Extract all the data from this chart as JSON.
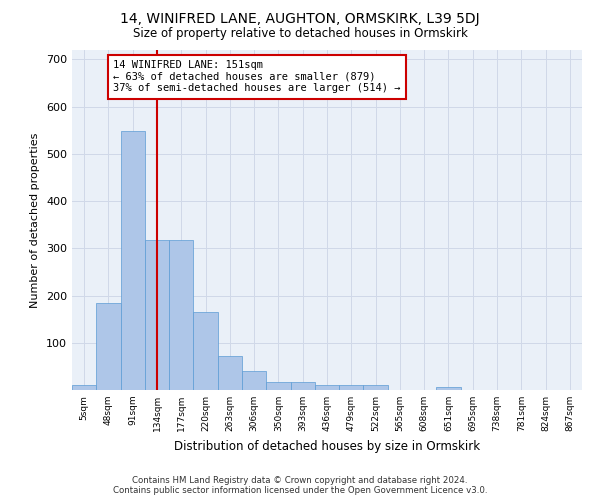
{
  "title": "14, WINIFRED LANE, AUGHTON, ORMSKIRK, L39 5DJ",
  "subtitle": "Size of property relative to detached houses in Ormskirk",
  "xlabel": "Distribution of detached houses by size in Ormskirk",
  "ylabel": "Number of detached properties",
  "footer": "Contains HM Land Registry data © Crown copyright and database right 2024.\nContains public sector information licensed under the Open Government Licence v3.0.",
  "bin_labels": [
    "5sqm",
    "48sqm",
    "91sqm",
    "134sqm",
    "177sqm",
    "220sqm",
    "263sqm",
    "306sqm",
    "350sqm",
    "393sqm",
    "436sqm",
    "479sqm",
    "522sqm",
    "565sqm",
    "608sqm",
    "651sqm",
    "695sqm",
    "738sqm",
    "781sqm",
    "824sqm",
    "867sqm"
  ],
  "bar_values": [
    10,
    185,
    549,
    318,
    317,
    165,
    73,
    40,
    17,
    17,
    11,
    11,
    11,
    0,
    0,
    6,
    0,
    0,
    0,
    0,
    0
  ],
  "bar_color": "#aec6e8",
  "bar_edge_color": "#5b9bd5",
  "grid_color": "#d0d8e8",
  "vline_x": 3,
  "vline_color": "#cc0000",
  "annotation_text": "14 WINIFRED LANE: 151sqm\n← 63% of detached houses are smaller (879)\n37% of semi-detached houses are larger (514) →",
  "annotation_box_color": "#ffffff",
  "annotation_box_edge": "#cc0000",
  "ylim": [
    0,
    720
  ],
  "yticks": [
    0,
    100,
    200,
    300,
    400,
    500,
    600,
    700
  ],
  "background_color": "#eaf0f8"
}
